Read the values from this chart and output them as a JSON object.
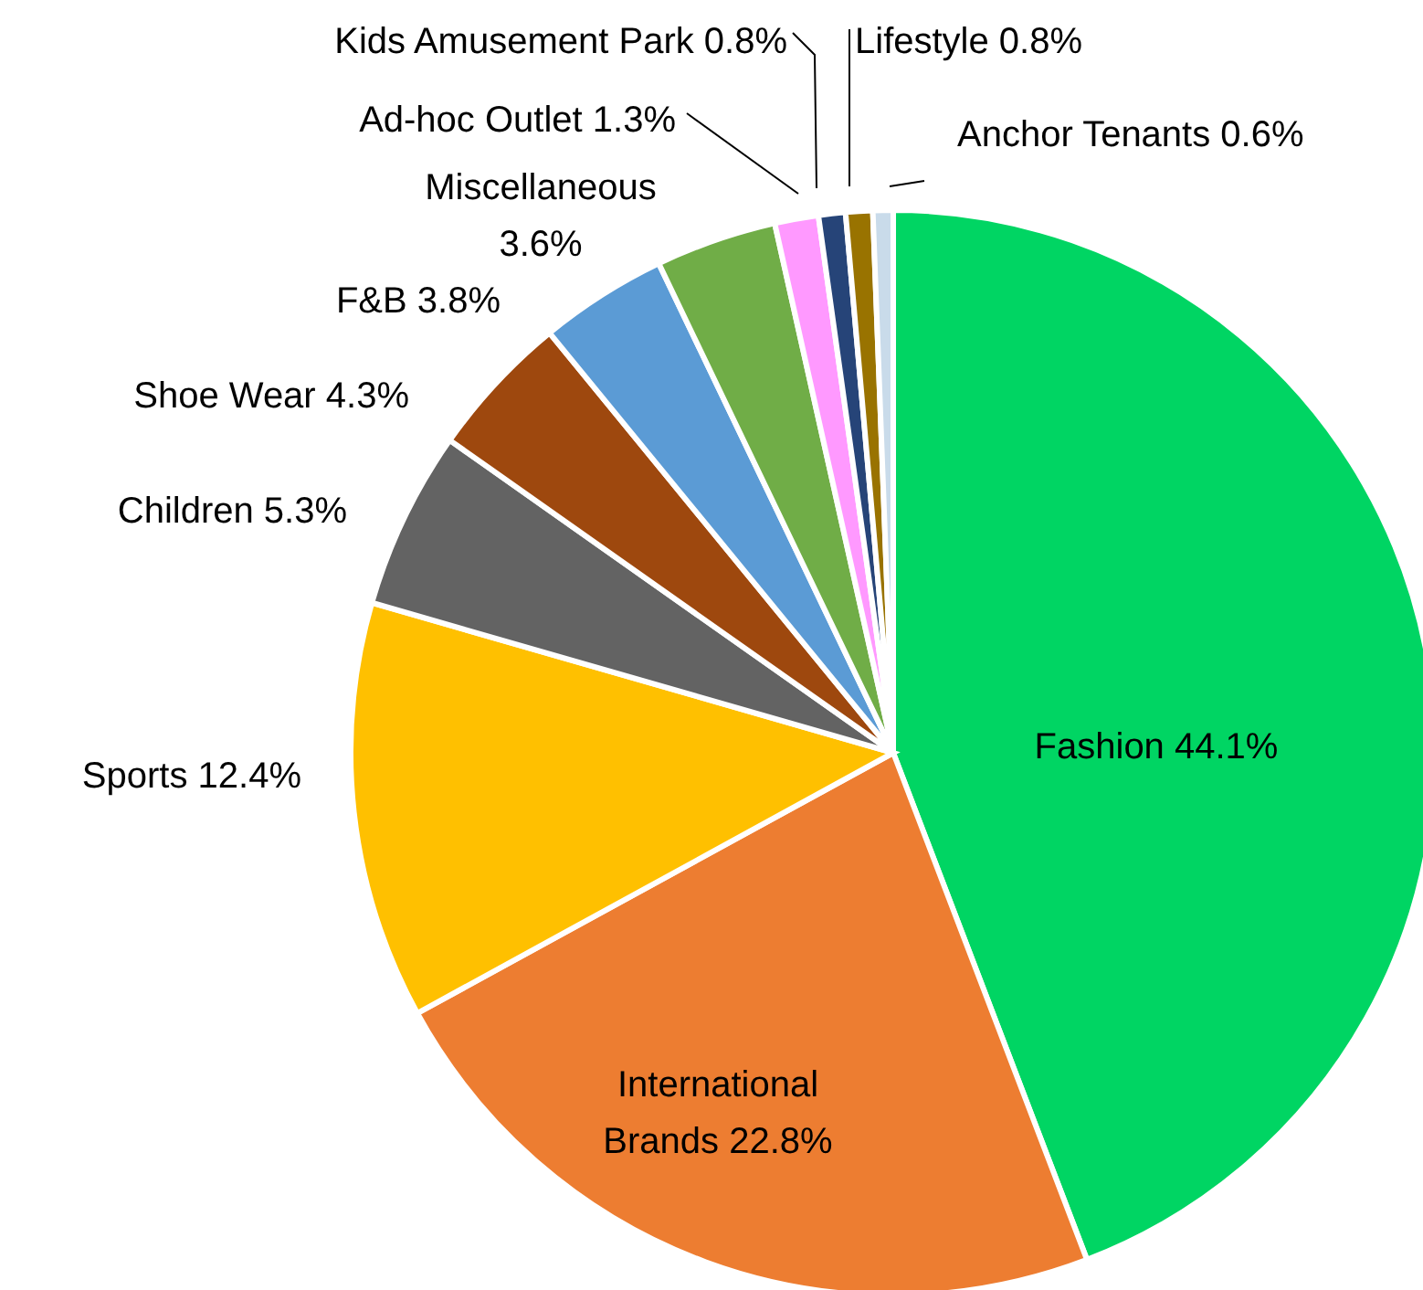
{
  "chart_data": {
    "type": "pie",
    "categories": [
      "Fashion",
      "International Brands",
      "Sports",
      "Children",
      "Shoe Wear",
      "F&B",
      "Miscellaneous",
      "Ad-hoc Outlet",
      "Kids Amusement Park",
      "Lifestyle",
      "Anchor Tenants"
    ],
    "values": [
      44.1,
      22.8,
      12.4,
      5.3,
      4.3,
      3.8,
      3.6,
      1.3,
      0.8,
      0.8,
      0.6
    ],
    "colors": [
      "#00d563",
      "#ed7d31",
      "#ffc000",
      "#636363",
      "#9e480e",
      "#5b9bd5",
      "#70ad47",
      "#ff99ff",
      "#264478",
      "#997300",
      "#c9dbea"
    ],
    "value_labels": [
      "44.1%",
      "22.8%",
      "12.4%",
      "5.3%",
      "4.3%",
      "3.8%",
      "3.6%",
      "1.3%",
      "0.8%",
      "0.8%",
      "0.6%"
    ],
    "legend": false
  }
}
